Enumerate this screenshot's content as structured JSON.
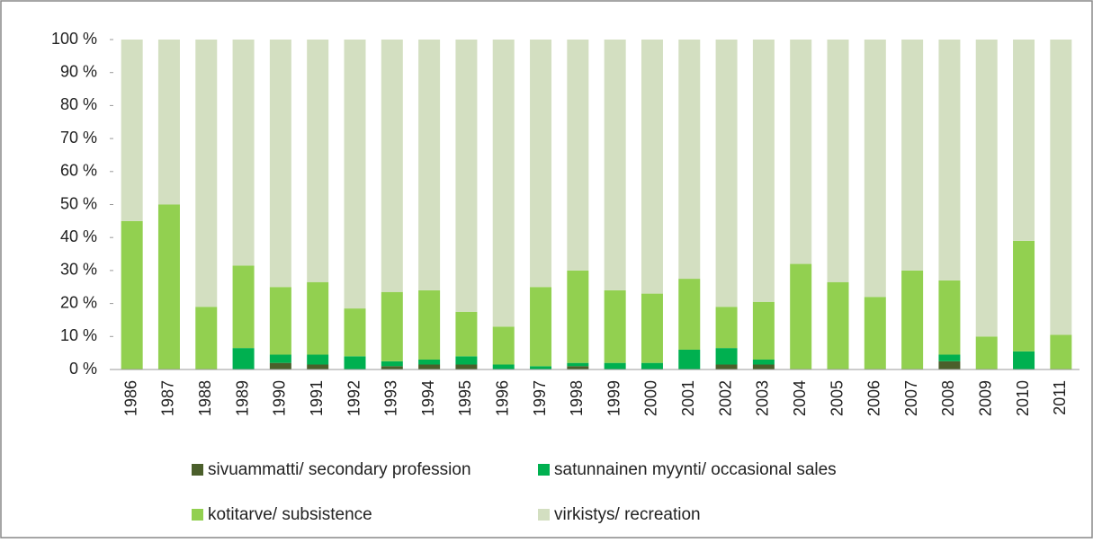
{
  "chart_data": {
    "type": "stacked_bar_100",
    "categories": [
      "1986",
      "1987",
      "1988",
      "1989",
      "1990",
      "1991",
      "1992",
      "1993",
      "1994",
      "1995",
      "1996",
      "1997",
      "1998",
      "1999",
      "2000",
      "2001",
      "2002",
      "2003",
      "2004",
      "2005",
      "2006",
      "2007",
      "2008",
      "2009",
      "2010",
      "2011"
    ],
    "series": [
      {
        "name": "sivuammatti/ secondary profession",
        "color": "#4b5f2b",
        "values": [
          0,
          0,
          0,
          0,
          2,
          1.5,
          0,
          1,
          1.5,
          1.5,
          0,
          0,
          1,
          0,
          0,
          0,
          1.5,
          1.5,
          0,
          0,
          0,
          0,
          2.5,
          0,
          0,
          0
        ]
      },
      {
        "name": "satunnainen myynti/ occasional sales",
        "color": "#00b050",
        "values": [
          0,
          0,
          0,
          6.5,
          2.5,
          3,
          4,
          1.5,
          1.5,
          2.5,
          1.5,
          1,
          1,
          2,
          2,
          6,
          5,
          1.5,
          0,
          0,
          0,
          0,
          2,
          0,
          5.5,
          0
        ]
      },
      {
        "name": "kotitarve/ subsistence",
        "color": "#92d050",
        "values": [
          45,
          50,
          19,
          25,
          20.5,
          22,
          14.5,
          21,
          21,
          13.5,
          11.5,
          24,
          28,
          22,
          21,
          21.5,
          12.5,
          17.5,
          32,
          26.5,
          22,
          30,
          22.5,
          10,
          33.5,
          10.5
        ]
      },
      {
        "name": "virkistys/ recreation",
        "color": "#d3dfc1",
        "values": [
          55,
          50,
          81,
          68.5,
          75,
          73.5,
          81.5,
          76.5,
          76,
          82.5,
          87,
          75,
          70,
          76,
          77,
          72.5,
          81,
          79.5,
          68,
          73.5,
          78,
          70,
          73,
          90,
          61,
          89.5
        ]
      }
    ],
    "ylim": [
      0,
      100
    ],
    "yticks": [
      {
        "value": 0,
        "label": "0 %"
      },
      {
        "value": 10,
        "label": "10 %"
      },
      {
        "value": 20,
        "label": "20 %"
      },
      {
        "value": 30,
        "label": "30 %"
      },
      {
        "value": 40,
        "label": "40 %"
      },
      {
        "value": 50,
        "label": "50 %"
      },
      {
        "value": 60,
        "label": "60 %"
      },
      {
        "value": 70,
        "label": "70 %"
      },
      {
        "value": 80,
        "label": "80 %"
      },
      {
        "value": 90,
        "label": "90 %"
      },
      {
        "value": 100,
        "label": "100 %"
      }
    ],
    "legend": "bottom"
  }
}
